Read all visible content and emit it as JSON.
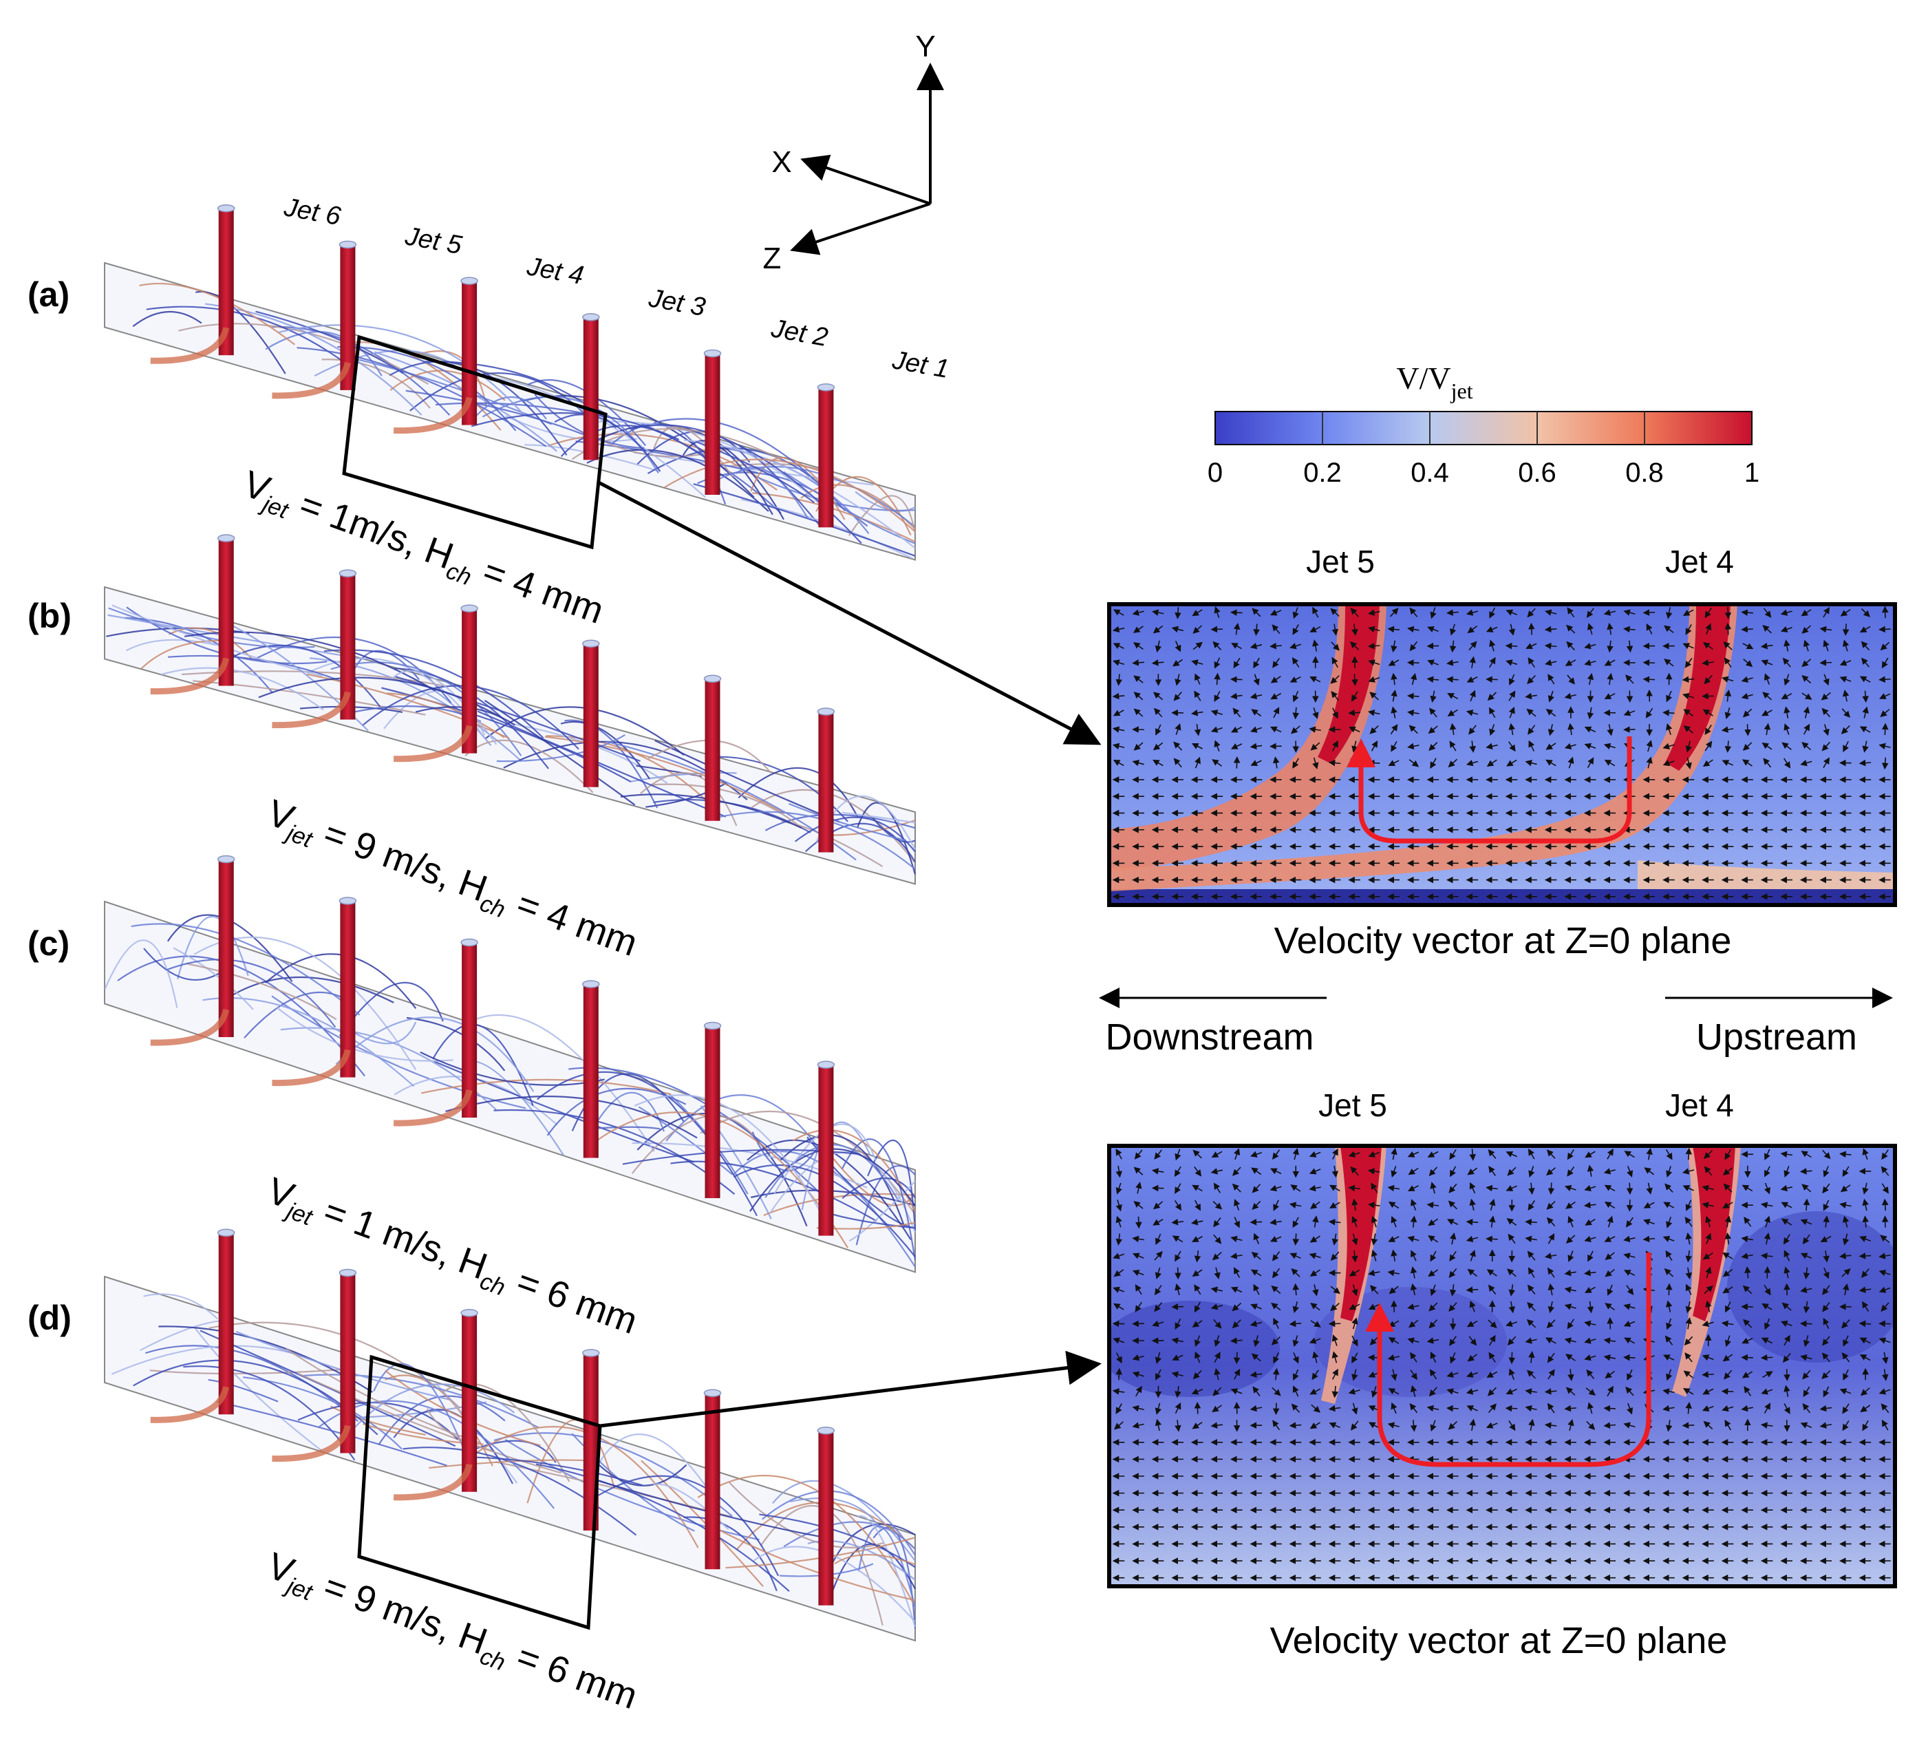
{
  "axes": {
    "y": "Y",
    "x": "X",
    "z": "Z"
  },
  "jet_labels": [
    "Jet 6",
    "Jet 5",
    "Jet 4",
    "Jet 3",
    "Jet 2",
    "Jet 1"
  ],
  "panels": [
    {
      "tag": "(a)",
      "v_value": "1m/s",
      "h_value": "4 mm"
    },
    {
      "tag": "(b)",
      "v_value": "9 m/s",
      "h_value": "4 mm"
    },
    {
      "tag": "(c)",
      "v_value": "1 m/s",
      "h_value": "6 mm"
    },
    {
      "tag": "(d)",
      "v_value": "9 m/s",
      "h_value": "6 mm"
    }
  ],
  "label_parts": {
    "v": "V",
    "jet": "jet",
    "h": "H",
    "ch": "ch",
    "eq1": " = ",
    "eq2": ", ",
    "eq3": " = "
  },
  "colorbar": {
    "title_main": "V/V",
    "title_sub": "jet",
    "ticks": [
      "0",
      "0.2",
      "0.4",
      "0.6",
      "0.8",
      "1"
    ],
    "stops": [
      "#3b3fc8",
      "#6f86f0",
      "#b8c9ef",
      "#f1c2a8",
      "#ee7a5a",
      "#c8102e"
    ]
  },
  "zoom_top": {
    "left_jet": "Jet 5",
    "right_jet": "Jet 4",
    "caption": "Velocity vector at Z=0 plane"
  },
  "zoom_bottom": {
    "left_jet": "Jet 5",
    "right_jet": "Jet 4",
    "caption": "Velocity vector at Z=0 plane"
  },
  "direction": {
    "down": "Downstream",
    "up": "Upstream"
  }
}
